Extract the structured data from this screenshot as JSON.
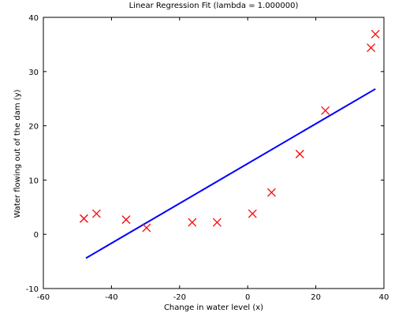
{
  "chart_data": {
    "type": "scatter",
    "title": "Linear Regression Fit (lambda = 1.000000)",
    "xlabel": "Change in water level (x)",
    "ylabel": "Water flowing out of the dam (y)",
    "xlim": [
      -60,
      40
    ],
    "ylim": [
      -10,
      40
    ],
    "xticks": [
      -60,
      -40,
      -20,
      0,
      20,
      40
    ],
    "yticks": [
      -10,
      0,
      10,
      20,
      30,
      40
    ],
    "grid": false,
    "colors": {
      "points": "#ff0000",
      "line": "#0000ff",
      "axes": "#000000"
    },
    "series": [
      {
        "type": "scatter",
        "marker": "x",
        "x": [
          -48.1,
          -44.4,
          -35.7,
          -29.7,
          -16.3,
          -9.0,
          1.4,
          7.0,
          15.3,
          22.8,
          36.2,
          37.5
        ],
        "y": [
          2.9,
          3.8,
          2.7,
          1.2,
          2.2,
          2.2,
          3.8,
          7.7,
          14.8,
          22.8,
          34.4,
          36.9
        ]
      },
      {
        "type": "line",
        "x": [
          -47.5,
          37.5
        ],
        "y": [
          -4.4,
          26.8
        ]
      }
    ]
  }
}
